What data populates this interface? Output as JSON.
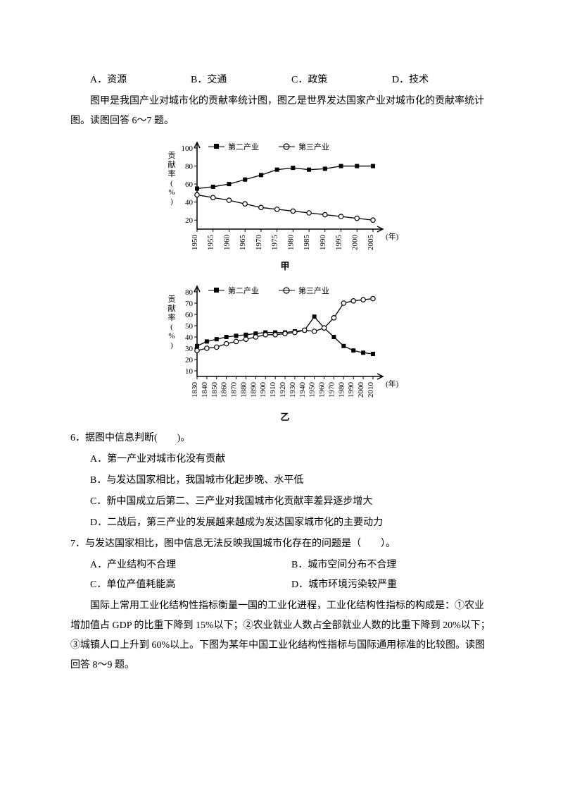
{
  "opt_row1": {
    "a": "A．资源",
    "b": "B．交通",
    "c": "C．政策",
    "d": "D．技术"
  },
  "intro67": "图甲是我国产业对城市化的贡献率统计图，图乙是世界发达国家产业对城市化的贡献率统计图。读图回答 6～7 题。",
  "chart_jia": {
    "legend2": "第二产业",
    "legend3": "第三产业",
    "yticks": [
      20,
      40,
      60,
      80,
      100
    ],
    "xticks": [
      "1950",
      "1955",
      "1960",
      "1965",
      "1970",
      "1975",
      "1980",
      "1985",
      "1990",
      "1995",
      "2000",
      "2005",
      "(年)"
    ],
    "ylabel": "贡献率(%)",
    "label": "甲",
    "series2": [
      55,
      57,
      60,
      65,
      70,
      76,
      78,
      76,
      77,
      80,
      80,
      80
    ],
    "series3": [
      48,
      45,
      42,
      38,
      34,
      32,
      30,
      28,
      26,
      24,
      22,
      20
    ],
    "axis_color": "#000000",
    "bg": "#ffffff",
    "line_color": "#000000",
    "marker2": "square",
    "marker3": "circle",
    "font": 11
  },
  "chart_yi": {
    "legend2": "第二产业",
    "legend3": "第三产业",
    "yticks": [
      10,
      20,
      30,
      40,
      50,
      60,
      70,
      80
    ],
    "xticks": [
      "1830",
      "1840",
      "1850",
      "1860",
      "1870",
      "1880",
      "1890",
      "1900",
      "1910",
      "1920",
      "1930",
      "1940",
      "1950",
      "1960",
      "1970",
      "1980",
      "1990",
      "2000",
      "2010",
      "(年)"
    ],
    "ylabel": "贡献率(%)",
    "label": "乙",
    "series2": [
      32,
      36,
      38,
      40,
      41,
      42,
      43,
      44,
      44,
      44,
      45,
      46,
      58,
      48,
      40,
      32,
      28,
      26,
      25
    ],
    "series3": [
      28,
      30,
      31,
      34,
      36,
      38,
      40,
      42,
      42,
      43,
      44,
      46,
      45,
      48,
      57,
      70,
      72,
      73,
      74
    ],
    "axis_color": "#000000",
    "bg": "#ffffff",
    "line_color": "#000000",
    "marker2": "square",
    "marker3": "circle",
    "font": 11
  },
  "q6": {
    "stem": "6．据图中信息判断(　　)。",
    "a": "A．第一产业对城市化没有贡献",
    "b": "B．与发达国家相比，我国城市化起步晚、水平低",
    "c": "C．新中国成立后第二、三产业对我国城市化贡献率差异逐步增大",
    "d": "D．二战后，第三产业的发展越来越成为发达国家城市化的主要动力"
  },
  "q7": {
    "stem": "7．与发达国家相比，图中信息无法反映我国城市化存在的问题是（　　）。",
    "a": "A．产业结构不合理",
    "b": "B．城市空间分布不合理",
    "c": "C．单位产值耗能高",
    "d": "D．城市环境污染较严重"
  },
  "intro89": "国际上常用工业化结构性指标衡量一国的工业化进程，工业化结构性指标的构成是：①农业增加值占 GDP 的比重下降到 15%以下；②农业就业人数占全部就业人数的比重下降到 20%以下；③城镇人口上升到 60%以上。下图为某年中国工业化结构性指标与国际通用标准的比较图。读图回答 8～9 题。"
}
